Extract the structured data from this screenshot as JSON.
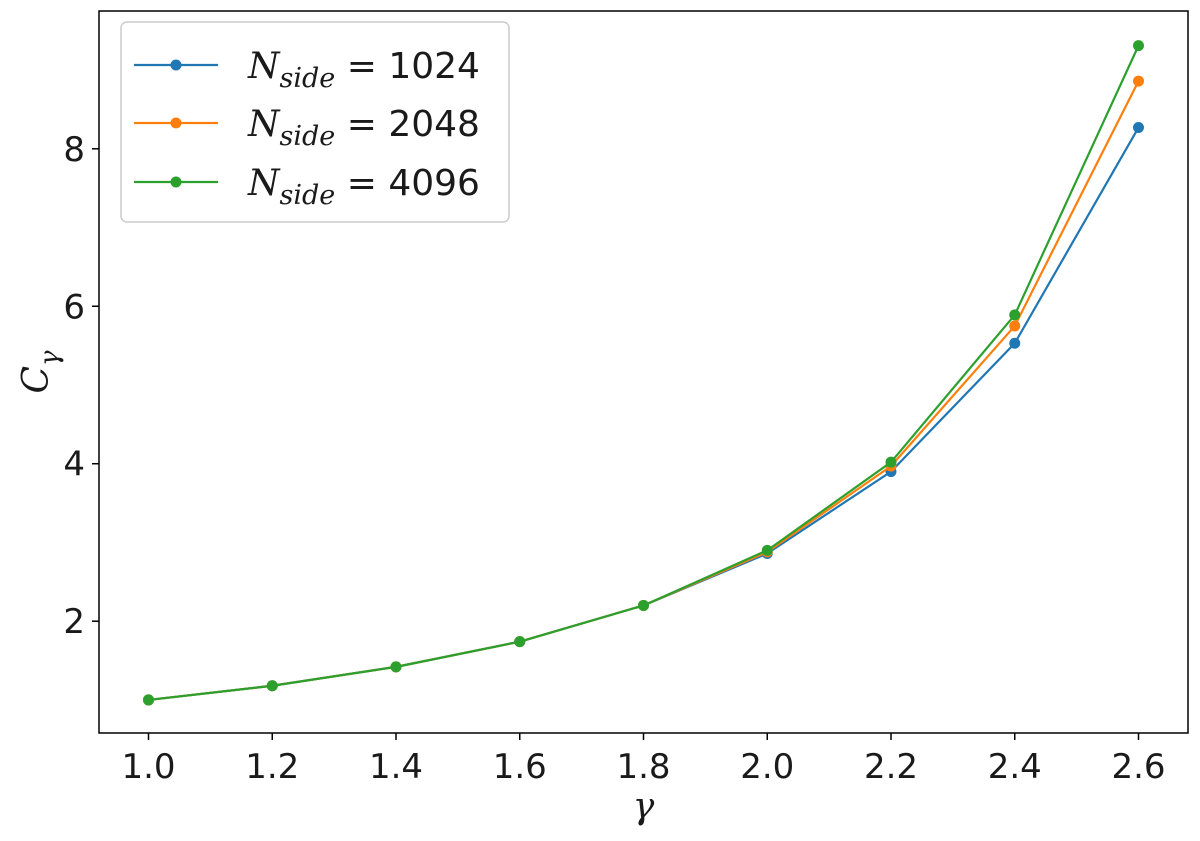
{
  "chart_data": {
    "type": "line",
    "xlabel": "γ",
    "ylabel_main": "C",
    "ylabel_sub": "γ",
    "x": [
      1.0,
      1.2,
      1.4,
      1.6,
      1.8,
      2.0,
      2.2,
      2.4,
      2.6
    ],
    "xticks": [
      "1.0",
      "1.2",
      "1.4",
      "1.6",
      "1.8",
      "2.0",
      "2.2",
      "2.4",
      "2.6"
    ],
    "yticks": [
      "2",
      "4",
      "6",
      "8"
    ],
    "ytick_values": [
      2,
      4,
      6,
      8
    ],
    "xlim": [
      0.92,
      2.68
    ],
    "ylim": [
      0.58,
      9.75
    ],
    "grid": false,
    "legend_position": "upper-left",
    "series": [
      {
        "name": "1024",
        "legend_symbol": "N",
        "legend_sub": "side",
        "legend_eq": " = 1024",
        "color": "#1f77b4",
        "values": [
          1.0,
          1.18,
          1.42,
          1.74,
          2.2,
          2.86,
          3.9,
          5.53,
          8.27
        ]
      },
      {
        "name": "2048",
        "legend_symbol": "N",
        "legend_sub": "side",
        "legend_eq": " = 2048",
        "color": "#ff7f0e",
        "values": [
          1.0,
          1.18,
          1.42,
          1.74,
          2.2,
          2.88,
          3.97,
          5.75,
          8.86
        ]
      },
      {
        "name": "4096",
        "legend_symbol": "N",
        "legend_sub": "side",
        "legend_eq": " = 4096",
        "color": "#2ca02c",
        "values": [
          1.0,
          1.18,
          1.42,
          1.74,
          2.2,
          2.9,
          4.02,
          5.89,
          9.31
        ]
      }
    ]
  }
}
